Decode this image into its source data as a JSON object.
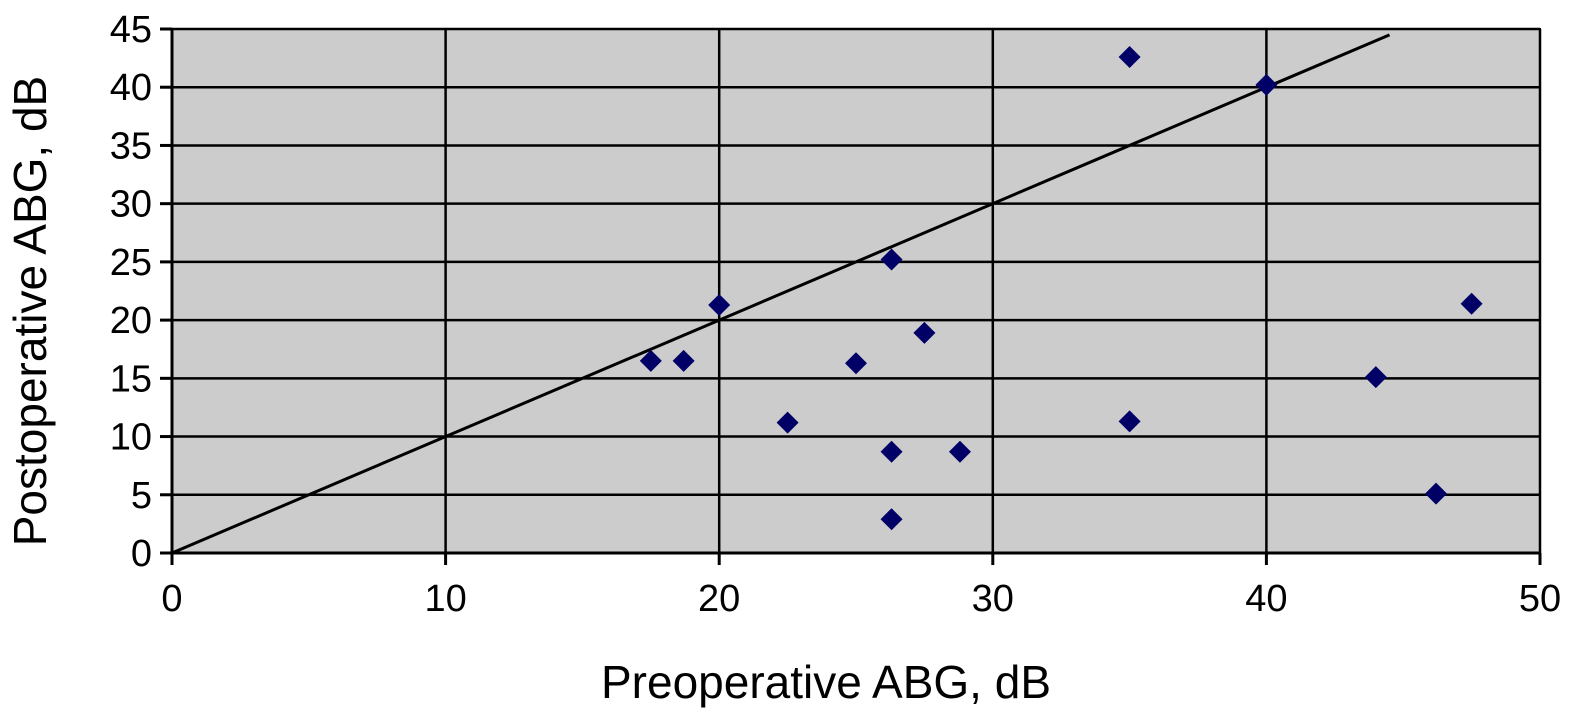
{
  "chart_data": {
    "type": "scatter",
    "title": "",
    "xlabel": "Preoperative ABG, dB",
    "ylabel": "Postoperative ABG, dB",
    "xlim": [
      0,
      50
    ],
    "ylim": [
      0,
      45
    ],
    "xticks": [
      0,
      10,
      20,
      30,
      40,
      50
    ],
    "yticks": [
      0,
      5,
      10,
      15,
      20,
      25,
      30,
      35,
      40,
      45
    ],
    "grid": true,
    "legend": "none",
    "plot_background": "#cccccc",
    "marker_color": "#000066",
    "marker": "diamond",
    "series": [
      {
        "points": [
          {
            "x": 17.5,
            "y": 16.5
          },
          {
            "x": 18.7,
            "y": 16.5
          },
          {
            "x": 20.0,
            "y": 21.3
          },
          {
            "x": 22.5,
            "y": 11.2
          },
          {
            "x": 25.0,
            "y": 16.3
          },
          {
            "x": 26.3,
            "y": 25.2
          },
          {
            "x": 26.3,
            "y": 8.7
          },
          {
            "x": 26.3,
            "y": 2.9
          },
          {
            "x": 27.5,
            "y": 18.9
          },
          {
            "x": 28.8,
            "y": 8.7
          },
          {
            "x": 35.0,
            "y": 42.6
          },
          {
            "x": 35.0,
            "y": 11.3
          },
          {
            "x": 40.0,
            "y": 40.2
          },
          {
            "x": 44.0,
            "y": 15.1
          },
          {
            "x": 46.2,
            "y": 5.1
          },
          {
            "x": 47.5,
            "y": 21.4
          }
        ]
      }
    ],
    "reference_line": {
      "x": [
        0,
        44.5
      ],
      "y": [
        0,
        44.5
      ]
    }
  }
}
